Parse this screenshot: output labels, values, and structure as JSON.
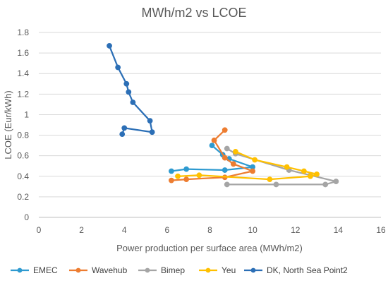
{
  "chart_data": {
    "type": "scatter",
    "title": "MWh/m2 vs LCOE",
    "xlabel": "Power production per surface area (MWh/m2)",
    "ylabel": "LCOE (Eur/kWh)",
    "xlim": [
      0,
      16
    ],
    "ylim": [
      0,
      1.8
    ],
    "x_ticks": [
      "0",
      "2",
      "4",
      "6",
      "8",
      "10",
      "12",
      "14",
      "16"
    ],
    "y_ticks": [
      "0",
      "0.2",
      "0.4",
      "0.6",
      "0.8",
      "1",
      "1.2",
      "1.4",
      "1.6",
      "1.8"
    ],
    "grid": "horizontal",
    "legend_position": "bottom",
    "series": [
      {
        "name": "EMEC",
        "color": "#2E9AD0",
        "points": [
          [
            6.2,
            0.45
          ],
          [
            6.9,
            0.47
          ],
          [
            8.7,
            0.46
          ],
          [
            10.0,
            0.49
          ],
          [
            8.9,
            0.57
          ],
          [
            8.6,
            0.61
          ],
          [
            8.1,
            0.7
          ]
        ]
      },
      {
        "name": "Wavehub",
        "color": "#ED7D31",
        "points": [
          [
            6.2,
            0.36
          ],
          [
            6.9,
            0.37
          ],
          [
            8.7,
            0.39
          ],
          [
            10.0,
            0.45
          ],
          [
            9.1,
            0.52
          ],
          [
            8.7,
            0.58
          ],
          [
            8.2,
            0.75
          ],
          [
            8.7,
            0.85
          ]
        ]
      },
      {
        "name": "Bimep",
        "color": "#A5A5A5",
        "points": [
          [
            8.8,
            0.32
          ],
          [
            11.1,
            0.32
          ],
          [
            13.4,
            0.32
          ],
          [
            13.9,
            0.35
          ],
          [
            12.7,
            0.41
          ],
          [
            11.7,
            0.46
          ],
          [
            9.2,
            0.62
          ],
          [
            8.8,
            0.67
          ]
        ]
      },
      {
        "name": "Yeu",
        "color": "#FFC000",
        "points": [
          [
            6.5,
            0.4
          ],
          [
            7.5,
            0.41
          ],
          [
            10.8,
            0.37
          ],
          [
            12.7,
            0.4
          ],
          [
            13.0,
            0.42
          ],
          [
            12.4,
            0.45
          ],
          [
            11.6,
            0.49
          ],
          [
            10.1,
            0.56
          ],
          [
            9.2,
            0.64
          ]
        ]
      },
      {
        "name": "DK, North Sea Point2",
        "color": "#2C6FB6",
        "points": [
          [
            3.9,
            0.81
          ],
          [
            4.0,
            0.87
          ],
          [
            5.3,
            0.83
          ],
          [
            5.2,
            0.94
          ],
          [
            4.4,
            1.12
          ],
          [
            4.2,
            1.22
          ],
          [
            4.1,
            1.3
          ],
          [
            3.7,
            1.46
          ],
          [
            3.3,
            1.67
          ]
        ]
      }
    ]
  }
}
